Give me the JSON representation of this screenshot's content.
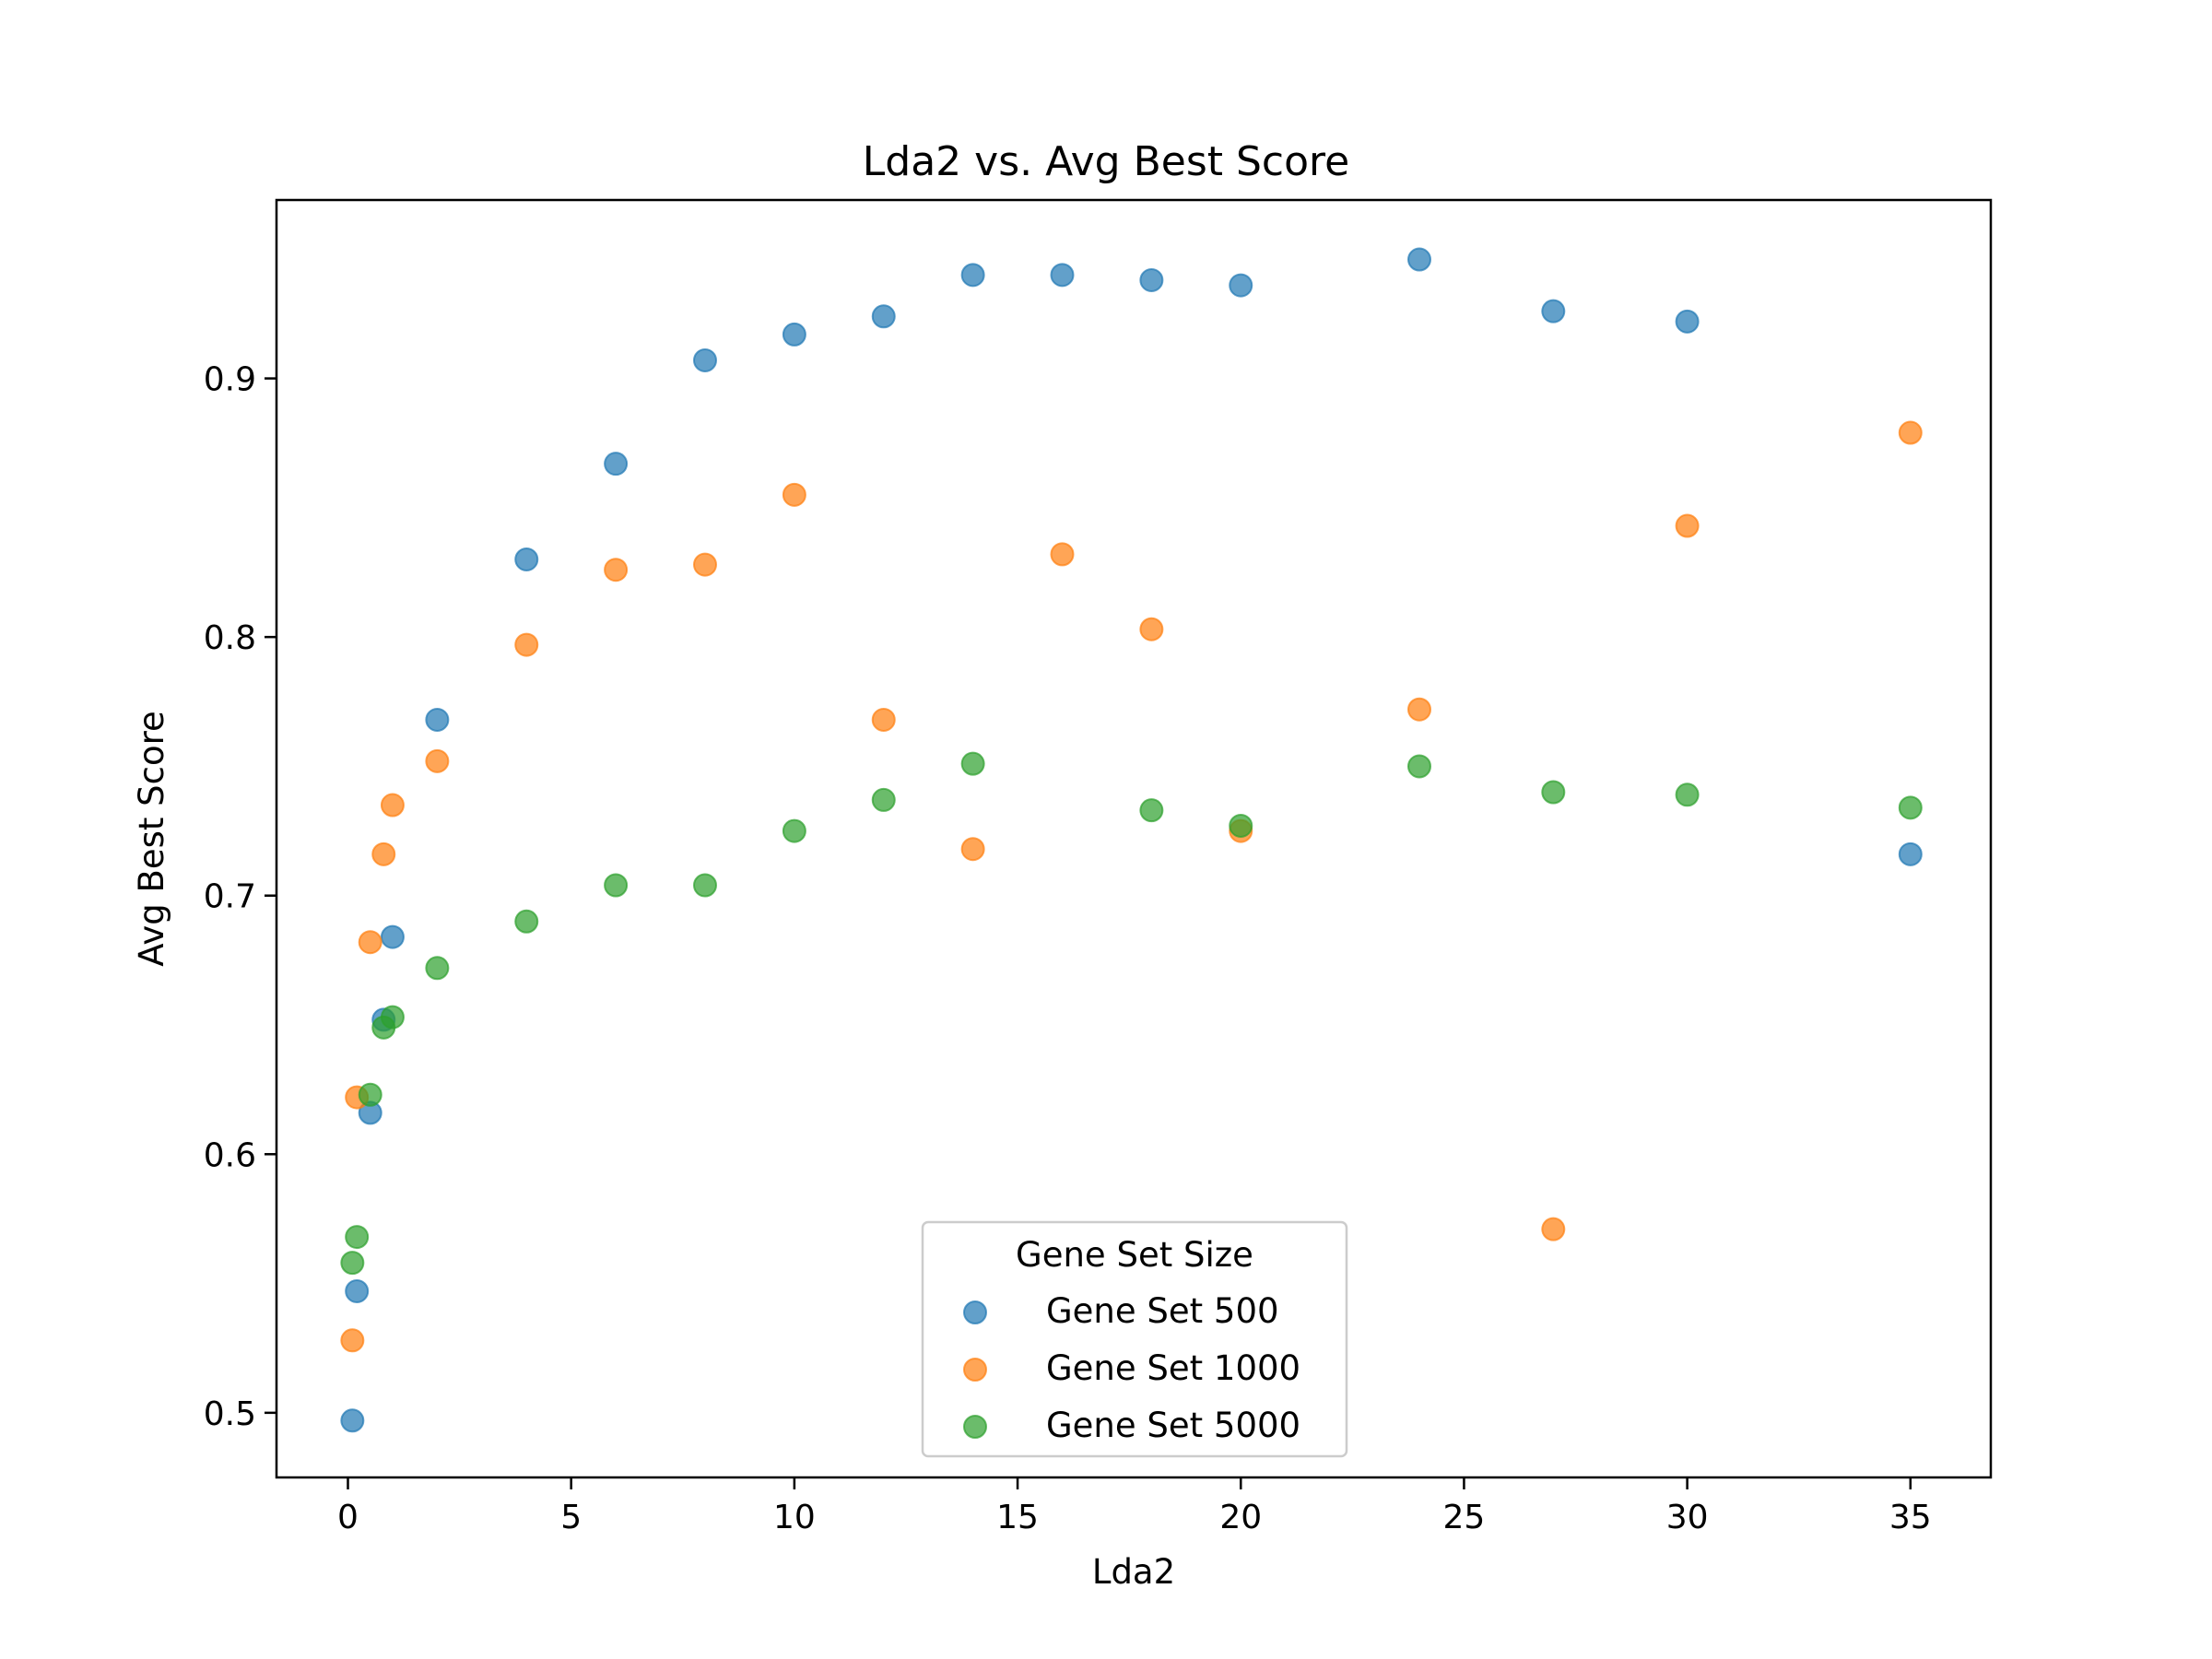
{
  "chart_data": {
    "type": "scatter",
    "title": "Lda2 vs. Avg Best Score",
    "xlabel": "Lda2",
    "ylabel": "Avg Best Score",
    "xlim": [
      -1.6,
      36.8
    ],
    "ylim": [
      0.475,
      0.969
    ],
    "xticks": [
      0,
      5,
      10,
      15,
      20,
      25,
      30,
      35
    ],
    "yticks": [
      0.5,
      0.6,
      0.7,
      0.8,
      0.9
    ],
    "grid": false,
    "legend": {
      "title": "Gene Set Size",
      "placement": "lower-center"
    },
    "series": [
      {
        "name": "Gene Set 500",
        "color": "#1f77b4",
        "points": [
          [
            0.1,
            0.497
          ],
          [
            0.2,
            0.547
          ],
          [
            0.5,
            0.616
          ],
          [
            0.8,
            0.652
          ],
          [
            1,
            0.684
          ],
          [
            2,
            0.768
          ],
          [
            4,
            0.83
          ],
          [
            6,
            0.867
          ],
          [
            8,
            0.907
          ],
          [
            10,
            0.917
          ],
          [
            12,
            0.924
          ],
          [
            14,
            0.94
          ],
          [
            16,
            0.94
          ],
          [
            18,
            0.938
          ],
          [
            20,
            0.936
          ],
          [
            24,
            0.946
          ],
          [
            27,
            0.926
          ],
          [
            30,
            0.922
          ],
          [
            35,
            0.716
          ]
        ]
      },
      {
        "name": "Gene Set 1000",
        "color": "#ff7f0e",
        "points": [
          [
            0.1,
            0.528
          ],
          [
            0.2,
            0.622
          ],
          [
            0.5,
            0.682
          ],
          [
            0.8,
            0.716
          ],
          [
            1,
            0.735
          ],
          [
            2,
            0.752
          ],
          [
            4,
            0.797
          ],
          [
            6,
            0.826
          ],
          [
            8,
            0.828
          ],
          [
            10,
            0.855
          ],
          [
            12,
            0.768
          ],
          [
            14,
            0.718
          ],
          [
            16,
            0.832
          ],
          [
            18,
            0.803
          ],
          [
            20,
            0.725
          ],
          [
            24,
            0.772
          ],
          [
            27,
            0.571
          ],
          [
            30,
            0.843
          ],
          [
            35,
            0.879
          ]
        ]
      },
      {
        "name": "Gene Set 5000",
        "color": "#2ca02c",
        "points": [
          [
            0.1,
            0.558
          ],
          [
            0.2,
            0.568
          ],
          [
            0.5,
            0.623
          ],
          [
            0.8,
            0.649
          ],
          [
            1,
            0.653
          ],
          [
            2,
            0.672
          ],
          [
            4,
            0.69
          ],
          [
            6,
            0.704
          ],
          [
            8,
            0.704
          ],
          [
            10,
            0.725
          ],
          [
            12,
            0.737
          ],
          [
            14,
            0.751
          ],
          [
            18,
            0.733
          ],
          [
            20,
            0.727
          ],
          [
            24,
            0.75
          ],
          [
            27,
            0.74
          ],
          [
            30,
            0.739
          ],
          [
            35,
            0.734
          ]
        ]
      }
    ]
  }
}
